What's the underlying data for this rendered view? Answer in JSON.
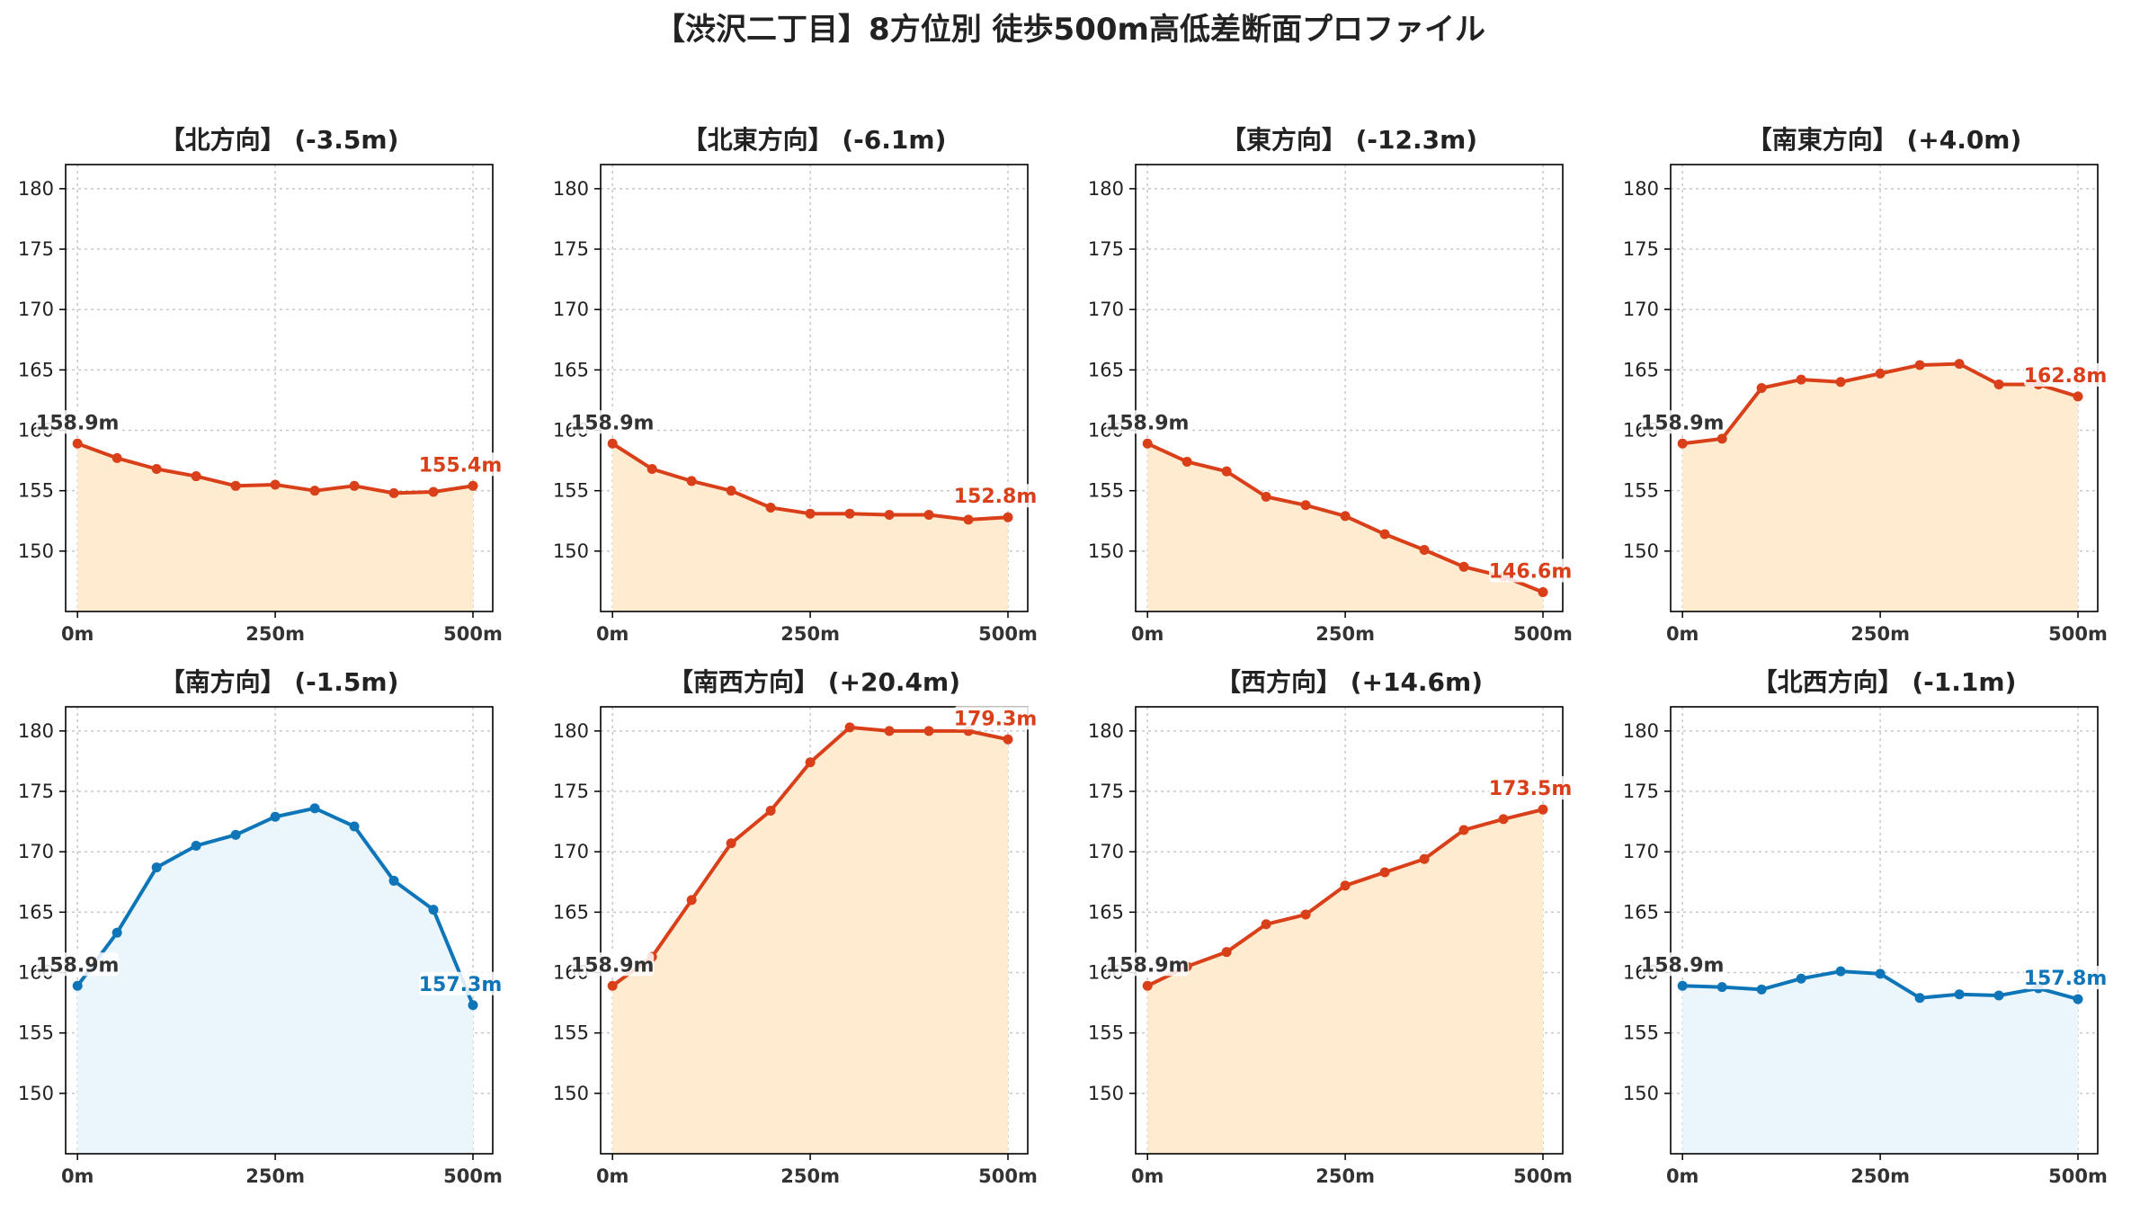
{
  "title": "【渋沢二丁目】8方位別 徒歩500m高低差断面プロファイル",
  "colors": {
    "down": "#d9401a",
    "down_fill": "#ffecd0",
    "up": "#0e76b8",
    "up_fill": "#eaf6fc"
  },
  "chart_data": [
    {
      "type": "area",
      "title": "【北方向】 (-3.5m)",
      "style": "down",
      "x": [
        0,
        50,
        100,
        150,
        200,
        250,
        300,
        350,
        400,
        450,
        500
      ],
      "y": [
        158.9,
        157.7,
        156.8,
        156.2,
        155.4,
        155.5,
        155.0,
        155.4,
        154.8,
        154.9,
        155.4
      ],
      "xticks": [
        "0m",
        "250m",
        "500m"
      ],
      "yticks": [
        "150",
        "155",
        "160",
        "165",
        "170",
        "175",
        "180"
      ],
      "ylim": [
        145,
        182
      ],
      "start_label": "158.9m",
      "end_label": "155.4m"
    },
    {
      "type": "area",
      "title": "【北東方向】 (-6.1m)",
      "style": "down",
      "x": [
        0,
        50,
        100,
        150,
        200,
        250,
        300,
        350,
        400,
        450,
        500
      ],
      "y": [
        158.9,
        156.8,
        155.8,
        155.0,
        153.6,
        153.1,
        153.1,
        153.0,
        153.0,
        152.6,
        152.8
      ],
      "xticks": [
        "0m",
        "250m",
        "500m"
      ],
      "yticks": [
        "150",
        "155",
        "160",
        "165",
        "170",
        "175",
        "180"
      ],
      "ylim": [
        145,
        182
      ],
      "start_label": "158.9m",
      "end_label": "152.8m"
    },
    {
      "type": "area",
      "title": "【東方向】 (-12.3m)",
      "style": "down",
      "x": [
        0,
        50,
        100,
        150,
        200,
        250,
        300,
        350,
        400,
        450,
        500
      ],
      "y": [
        158.9,
        157.4,
        156.6,
        154.5,
        153.8,
        152.9,
        151.4,
        150.1,
        148.7,
        147.9,
        146.6
      ],
      "xticks": [
        "0m",
        "250m",
        "500m"
      ],
      "yticks": [
        "150",
        "155",
        "160",
        "165",
        "170",
        "175",
        "180"
      ],
      "ylim": [
        145,
        182
      ],
      "start_label": "158.9m",
      "end_label": "146.6m"
    },
    {
      "type": "area",
      "title": "【南東方向】 (+4.0m)",
      "style": "down",
      "x": [
        0,
        50,
        100,
        150,
        200,
        250,
        300,
        350,
        400,
        450,
        500
      ],
      "y": [
        158.9,
        159.3,
        163.5,
        164.2,
        164.0,
        164.7,
        165.4,
        165.5,
        163.8,
        163.8,
        162.8
      ],
      "xticks": [
        "0m",
        "250m",
        "500m"
      ],
      "yticks": [
        "150",
        "155",
        "160",
        "165",
        "170",
        "175",
        "180"
      ],
      "ylim": [
        145,
        182
      ],
      "start_label": "158.9m",
      "end_label": "162.8m"
    },
    {
      "type": "area",
      "title": "【南方向】 (-1.5m)",
      "style": "up",
      "x": [
        0,
        50,
        100,
        150,
        200,
        250,
        300,
        350,
        400,
        450,
        500
      ],
      "y": [
        158.9,
        163.3,
        168.7,
        170.5,
        171.4,
        172.9,
        173.6,
        172.1,
        167.6,
        165.2,
        157.3
      ],
      "xticks": [
        "0m",
        "250m",
        "500m"
      ],
      "yticks": [
        "150",
        "155",
        "160",
        "165",
        "170",
        "175",
        "180"
      ],
      "ylim": [
        145,
        182
      ],
      "start_label": "158.9m",
      "end_label": "157.3m"
    },
    {
      "type": "area",
      "title": "【南西方向】 (+20.4m)",
      "style": "down",
      "x": [
        0,
        50,
        100,
        150,
        200,
        250,
        300,
        350,
        400,
        450,
        500
      ],
      "y": [
        158.9,
        161.3,
        166.0,
        170.7,
        173.4,
        177.4,
        180.3,
        180.0,
        180.0,
        180.0,
        179.3
      ],
      "xticks": [
        "0m",
        "250m",
        "500m"
      ],
      "yticks": [
        "150",
        "155",
        "160",
        "165",
        "170",
        "175",
        "180"
      ],
      "ylim": [
        145,
        182
      ],
      "start_label": "158.9m",
      "end_label": "179.3m"
    },
    {
      "type": "area",
      "title": "【西方向】 (+14.6m)",
      "style": "down",
      "x": [
        0,
        50,
        100,
        150,
        200,
        250,
        300,
        350,
        400,
        450,
        500
      ],
      "y": [
        158.9,
        160.5,
        161.7,
        164.0,
        164.8,
        167.2,
        168.3,
        169.4,
        171.8,
        172.7,
        173.5
      ],
      "xticks": [
        "0m",
        "250m",
        "500m"
      ],
      "yticks": [
        "150",
        "155",
        "160",
        "165",
        "170",
        "175",
        "180"
      ],
      "ylim": [
        145,
        182
      ],
      "start_label": "158.9m",
      "end_label": "173.5m"
    },
    {
      "type": "area",
      "title": "【北西方向】 (-1.1m)",
      "style": "up",
      "x": [
        0,
        50,
        100,
        150,
        200,
        250,
        300,
        350,
        400,
        450,
        500
      ],
      "y": [
        158.9,
        158.8,
        158.6,
        159.5,
        160.1,
        159.9,
        157.9,
        158.2,
        158.1,
        158.7,
        157.8
      ],
      "xticks": [
        "0m",
        "250m",
        "500m"
      ],
      "yticks": [
        "150",
        "155",
        "160",
        "165",
        "170",
        "175",
        "180"
      ],
      "ylim": [
        145,
        182
      ],
      "start_label": "158.9m",
      "end_label": "157.8m"
    }
  ]
}
